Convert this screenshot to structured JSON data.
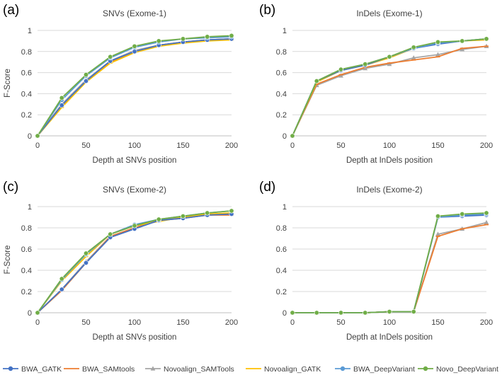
{
  "figure": {
    "series_styles": [
      {
        "name": "BWA_GATK",
        "color": "#4472C4",
        "marker": "circle"
      },
      {
        "name": "BWA_SAMtools",
        "color": "#ED7D31",
        "marker": "line"
      },
      {
        "name": "Novoalign_SAMTools",
        "color": "#A5A5A5",
        "marker": "triangle"
      },
      {
        "name": "Novoalign_GATK",
        "color": "#FFC000",
        "marker": "line"
      },
      {
        "name": "BWA_DeepVariant",
        "color": "#5B9BD5",
        "marker": "circle"
      },
      {
        "name": "Novo_DeepVariant",
        "color": "#70AD47",
        "marker": "circle"
      }
    ]
  },
  "chart_data": [
    {
      "panel_label": "(a)",
      "type": "line",
      "title": "SNVs (Exome-1)",
      "xlabel": "Depth at SNVs position",
      "ylabel": "F-Score",
      "xlim": [
        0,
        200
      ],
      "ylim": [
        0,
        1
      ],
      "xticks": [
        0,
        50,
        100,
        150,
        200
      ],
      "yticks": [
        0,
        0.2,
        0.4,
        0.6,
        0.8,
        1
      ],
      "ytick_labels": [
        "0",
        "0.2",
        "0.4",
        "0.6",
        "0.8",
        "1"
      ],
      "x": [
        0,
        25,
        50,
        75,
        100,
        125,
        150,
        175,
        200
      ],
      "series": [
        {
          "name": "BWA_GATK",
          "values": [
            0,
            0.29,
            0.52,
            0.71,
            0.8,
            0.86,
            0.89,
            0.91,
            0.92
          ]
        },
        {
          "name": "BWA_SAMtools",
          "values": [
            0,
            0.28,
            0.52,
            0.7,
            0.8,
            0.86,
            0.89,
            0.91,
            0.92
          ]
        },
        {
          "name": "Novoalign_SAMTools",
          "values": [
            0,
            0.3,
            0.53,
            0.71,
            0.81,
            0.86,
            0.89,
            0.91,
            0.92
          ]
        },
        {
          "name": "Novoalign_GATK",
          "values": [
            0,
            0.27,
            0.51,
            0.69,
            0.79,
            0.85,
            0.88,
            0.9,
            0.91
          ]
        },
        {
          "name": "BWA_DeepVariant",
          "values": [
            0,
            0.34,
            0.57,
            0.74,
            0.84,
            0.89,
            0.92,
            0.93,
            0.94
          ]
        },
        {
          "name": "Novo_DeepVariant",
          "values": [
            0,
            0.36,
            0.58,
            0.75,
            0.85,
            0.9,
            0.92,
            0.94,
            0.95
          ]
        }
      ]
    },
    {
      "panel_label": "(b)",
      "type": "line",
      "title": "InDels (Exome-1)",
      "xlabel": "Depth at InDels position",
      "ylabel": "",
      "xlim": [
        0,
        200
      ],
      "ylim": [
        0,
        1
      ],
      "xticks": [
        0,
        50,
        100,
        150,
        200
      ],
      "yticks": [
        0,
        0.2,
        0.4,
        0.6,
        0.8,
        1
      ],
      "ytick_labels": [
        "0",
        "0.2",
        "0.4",
        "0.6",
        "0.8",
        "1"
      ],
      "x": [
        0,
        25,
        50,
        75,
        100,
        125,
        150,
        175,
        200
      ],
      "series": [
        {
          "name": "BWA_GATK",
          "values": [
            0,
            0.52,
            0.62,
            0.67,
            0.75,
            0.83,
            0.87,
            0.9,
            0.92
          ]
        },
        {
          "name": "BWA_SAMtools",
          "values": [
            0,
            0.49,
            0.58,
            0.65,
            0.69,
            0.72,
            0.75,
            0.83,
            0.85
          ]
        },
        {
          "name": "Novoalign_SAMTools",
          "values": [
            0,
            0.48,
            0.57,
            0.64,
            0.68,
            0.74,
            0.77,
            0.82,
            0.85
          ]
        },
        {
          "name": "Novoalign_GATK",
          "values": [
            0,
            0.51,
            0.62,
            0.67,
            0.74,
            0.83,
            0.88,
            0.9,
            0.91
          ]
        },
        {
          "name": "BWA_DeepVariant",
          "values": [
            0,
            0.52,
            0.63,
            0.68,
            0.75,
            0.83,
            0.88,
            0.9,
            0.92
          ]
        },
        {
          "name": "Novo_DeepVariant",
          "values": [
            0,
            0.52,
            0.63,
            0.68,
            0.75,
            0.84,
            0.89,
            0.9,
            0.92
          ]
        }
      ]
    },
    {
      "panel_label": "(c)",
      "type": "line",
      "title": "SNVs (Exome-2)",
      "xlabel": "Depth at SNVs position",
      "ylabel": "F-Score",
      "xlim": [
        0,
        200
      ],
      "ylim": [
        0,
        1
      ],
      "xticks": [
        0,
        50,
        100,
        150,
        200
      ],
      "yticks": [
        0,
        0.2,
        0.4,
        0.6,
        0.8,
        1
      ],
      "ytick_labels": [
        "0",
        "0.2",
        "0.4",
        "0.6",
        "0.8",
        "1"
      ],
      "x": [
        0,
        25,
        50,
        75,
        100,
        125,
        150,
        175,
        200
      ],
      "series": [
        {
          "name": "BWA_GATK",
          "values": [
            0,
            0.22,
            0.47,
            0.71,
            0.79,
            0.87,
            0.89,
            0.92,
            0.93
          ]
        },
        {
          "name": "BWA_SAMtools",
          "values": [
            0,
            0.21,
            0.47,
            0.72,
            0.8,
            0.87,
            0.89,
            0.92,
            0.92
          ]
        },
        {
          "name": "Novoalign_SAMTools",
          "values": [
            0,
            0.22,
            0.48,
            0.72,
            0.8,
            0.87,
            0.9,
            0.92,
            0.93
          ]
        },
        {
          "name": "Novoalign_GATK",
          "values": [
            0,
            0.3,
            0.53,
            0.74,
            0.82,
            0.86,
            0.9,
            0.93,
            0.94
          ]
        },
        {
          "name": "BWA_DeepVariant",
          "values": [
            0,
            0.31,
            0.55,
            0.74,
            0.83,
            0.88,
            0.91,
            0.94,
            0.96
          ]
        },
        {
          "name": "Novo_DeepVariant",
          "values": [
            0,
            0.32,
            0.56,
            0.74,
            0.82,
            0.88,
            0.91,
            0.94,
            0.96
          ]
        }
      ]
    },
    {
      "panel_label": "(d)",
      "type": "line",
      "title": "InDels (Exome-2)",
      "xlabel": "Depth at InDels position",
      "ylabel": "",
      "xlim": [
        0,
        200
      ],
      "ylim": [
        0,
        1
      ],
      "xticks": [
        0,
        50,
        100,
        150,
        200
      ],
      "yticks": [
        0,
        0.2,
        0.4,
        0.6,
        0.8,
        1
      ],
      "ytick_labels": [
        "0",
        "0.2",
        "0.4",
        "0.6",
        "0.8",
        "1"
      ],
      "x": [
        0,
        25,
        50,
        75,
        100,
        125,
        150,
        175,
        200
      ],
      "series": [
        {
          "name": "BWA_GATK",
          "values": [
            0,
            0,
            0,
            0,
            0.01,
            0.01,
            0.9,
            0.91,
            0.92
          ]
        },
        {
          "name": "BWA_SAMtools",
          "values": [
            0,
            0,
            0,
            0,
            0.01,
            0.01,
            0.72,
            0.79,
            0.83
          ]
        },
        {
          "name": "Novoalign_SAMTools",
          "values": [
            0,
            0,
            0,
            0,
            0.01,
            0.01,
            0.74,
            0.79,
            0.85
          ]
        },
        {
          "name": "Novoalign_GATK",
          "values": [
            0,
            0,
            0,
            0,
            0.01,
            0.01,
            0.9,
            0.92,
            0.93
          ]
        },
        {
          "name": "BWA_DeepVariant",
          "values": [
            0,
            0,
            0,
            0,
            0.01,
            0.01,
            0.9,
            0.92,
            0.93
          ]
        },
        {
          "name": "Novo_DeepVariant",
          "values": [
            0,
            0,
            0,
            0,
            0.01,
            0.01,
            0.91,
            0.93,
            0.94
          ]
        }
      ]
    }
  ]
}
